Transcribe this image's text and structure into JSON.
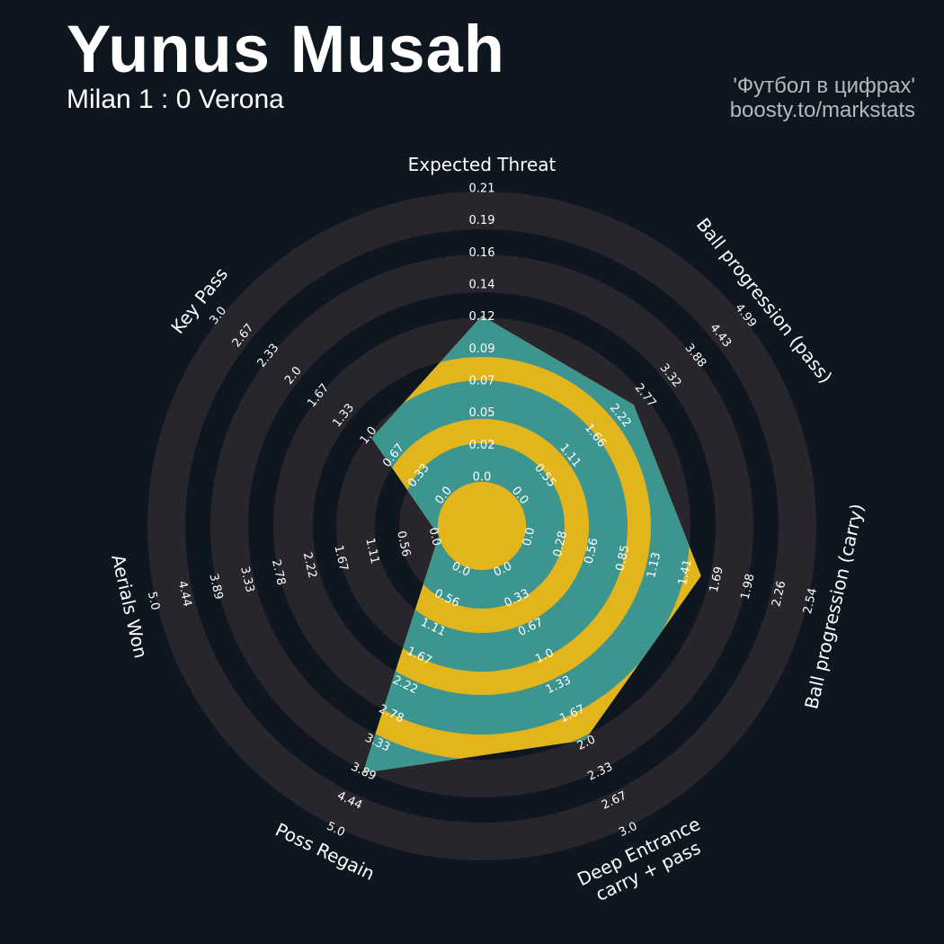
{
  "header": {
    "title": "Yunus Musah",
    "subtitle": "Milan 1 : 0 Verona",
    "credit_line1": "'Футбол в цифрах'",
    "credit_line2": "boosty.to/markstats"
  },
  "colors": {
    "background": "#0e1720",
    "ring_outside": "#28252c",
    "ring_inside": "#3d958f",
    "polygon_accent": "#e2b51d",
    "text": "#ffffff"
  },
  "chart_data": {
    "type": "radar",
    "num_rings": 4,
    "params": [
      {
        "name": [
          "Expected Threat"
        ],
        "lower": 0.0,
        "upper": 0.21,
        "value": 0.12,
        "ring_labels": [
          "0.0",
          "0.02",
          "0.05",
          "0.07",
          "0.09",
          "0.12",
          "0.14",
          "0.16",
          "0.19",
          "0.21"
        ]
      },
      {
        "name": [
          "Ball progression (pass)"
        ],
        "lower": 0.0,
        "upper": 4.99,
        "value": 2.58,
        "ring_labels": [
          "0.0",
          "0.55",
          "1.11",
          "1.66",
          "2.22",
          "2.77",
          "3.32",
          "3.88",
          "4.43",
          "4.99"
        ]
      },
      {
        "name": [
          "Ball progression (carry)"
        ],
        "lower": 0.0,
        "upper": 2.54,
        "value": 1.58,
        "ring_labels": [
          "0.0",
          "0.28",
          "0.56",
          "0.85",
          "1.13",
          "1.41",
          "1.69",
          "1.98",
          "2.26",
          "2.54"
        ]
      },
      {
        "name": [
          "Deep Entrance",
          "carry + pass"
        ],
        "lower": 0.0,
        "upper": 3.0,
        "value": 2.0,
        "ring_labels": [
          "0.0",
          "0.33",
          "0.67",
          "1.0",
          "1.33",
          "1.67",
          "2.0",
          "2.33",
          "2.67",
          "3.0"
        ]
      },
      {
        "name": [
          "Poss Regain"
        ],
        "lower": 0.0,
        "upper": 5.0,
        "value": 3.96,
        "ring_labels": [
          "0.0",
          "0.56",
          "1.11",
          "1.67",
          "2.22",
          "2.78",
          "3.33",
          "3.89",
          "4.44",
          "5.0"
        ]
      },
      {
        "name": [
          "Aerials Won"
        ],
        "lower": 0.0,
        "upper": 5.0,
        "value": 0.0,
        "ring_labels": [
          "0.0",
          "0.56",
          "1.11",
          "1.67",
          "2.22",
          "2.78",
          "3.33",
          "3.89",
          "4.44",
          "5.0"
        ]
      },
      {
        "name": [
          "Key Pass"
        ],
        "lower": 0.0,
        "upper": 3.0,
        "value": 1.0,
        "ring_labels": [
          "0.0",
          "0.33",
          "0.67",
          "1.0",
          "1.33",
          "1.67",
          "2.0",
          "2.33",
          "2.67",
          "3.0"
        ]
      }
    ]
  }
}
